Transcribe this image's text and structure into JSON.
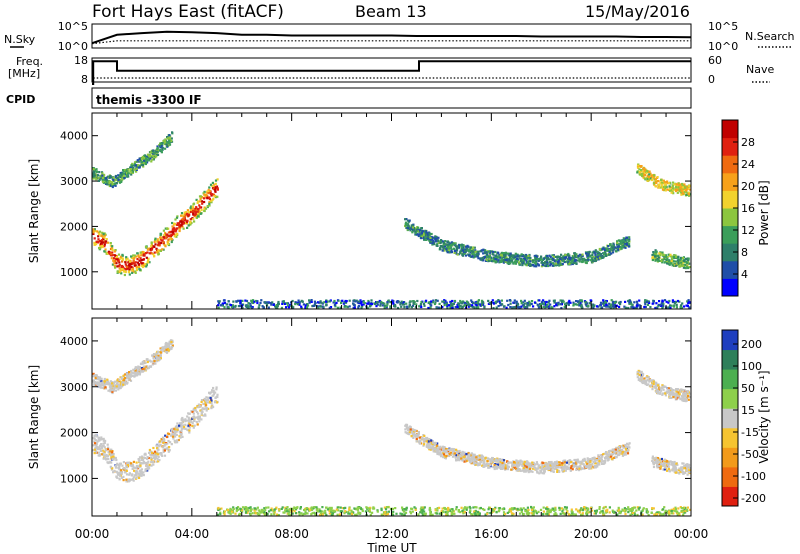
{
  "header": {
    "station": "Fort Hays East (fitACF)",
    "beam": "Beam 13",
    "date": "15/May/2016"
  },
  "sky_panel": {
    "left_label": "N.Sky",
    "left_ticks": [
      "10^5",
      "10^0"
    ],
    "right_label": "N.Search",
    "right_ticks": [
      "10^5",
      "10^0"
    ]
  },
  "freq_panel": {
    "left_label_line1": "Freq.",
    "left_label_line2": "[MHz]",
    "left_ticks": [
      "18",
      "8"
    ],
    "right_label": "Nave",
    "right_ticks": [
      "60",
      "0"
    ]
  },
  "cpid_panel": {
    "label": "CPID",
    "text": "themis -3300 IF"
  },
  "time_axis": {
    "label": "Time UT",
    "ticks": [
      "00:00",
      "04:00",
      "08:00",
      "12:00",
      "16:00",
      "20:00",
      "00:00"
    ]
  },
  "power_colorbar": {
    "label": "Power [dB]",
    "ticks": [
      "28",
      "24",
      "20",
      "16",
      "12",
      "8",
      "4"
    ],
    "colors": [
      "#0000ff",
      "#1f4ea8",
      "#2e7f6a",
      "#3b9e5a",
      "#8cc63f",
      "#f2d22e",
      "#f7a11a",
      "#ef6a10",
      "#e02010",
      "#c00000"
    ]
  },
  "velocity_colorbar": {
    "label": "Velocity [m s⁻¹]",
    "ticks": [
      "200",
      "100",
      "50",
      "15",
      "-15",
      "-50",
      "-100",
      "-200"
    ],
    "colors": [
      "#1f3fbf",
      "#2e7f5a",
      "#4caf50",
      "#8ed04b",
      "#c8c8c8",
      "#f5c431",
      "#f29a1a",
      "#ef6a10",
      "#e02010"
    ]
  },
  "chart_data": [
    {
      "type": "line",
      "title": "N.Sky / N.Search",
      "x_range_hours": [
        0,
        24
      ],
      "sky_level": [
        0.2,
        0.55,
        0.62,
        0.68,
        0.66,
        0.62,
        0.55,
        0.55,
        0.52,
        0.52,
        0.52,
        0.52,
        0.52,
        0.5,
        0.5,
        0.5,
        0.5,
        0.5,
        0.48,
        0.48,
        0.48,
        0.48,
        0.46,
        0.46,
        0.45
      ],
      "search_level": [
        0.18,
        0.3,
        0.3,
        0.3,
        0.3,
        0.3,
        0.3,
        0.3,
        0.3,
        0.3,
        0.3,
        0.3,
        0.3,
        0.3,
        0.3,
        0.3,
        0.3,
        0.3,
        0.3,
        0.3,
        0.3,
        0.3,
        0.3,
        0.3,
        0.3
      ]
    },
    {
      "type": "line",
      "ylabel": "Freq. [MHz]",
      "x_hours": [
        0,
        0.05,
        0.05,
        1.0,
        1.0,
        13.1,
        13.1,
        24
      ],
      "freq_mhz": [
        8,
        8,
        17.5,
        17.5,
        13.5,
        13.5,
        17.5,
        17.5
      ],
      "nave_level": 10
    },
    {
      "type": "heatmap",
      "ylabel": "Slant Range [km]",
      "xlabel": "Time UT",
      "x_range_hours": [
        0,
        24
      ],
      "y_range_km": [
        180,
        4500
      ],
      "y_ticks_km": [
        1000,
        2000,
        3000,
        4000
      ],
      "colorbar": "Power [dB]",
      "features": [
        {
          "name": "morning arc",
          "t": [
            0.0,
            0.5,
            1.0,
            1.5,
            2.0,
            2.5,
            3.0,
            3.5,
            4.0,
            4.5,
            5.0
          ],
          "range_km": [
            1800,
            1650,
            1200,
            1150,
            1300,
            1550,
            1800,
            2100,
            2300,
            2600,
            2900
          ],
          "power_db": 22
        },
        {
          "name": "upper band",
          "t": [
            0.0,
            0.8,
            1.6,
            2.4,
            3.2
          ],
          "range_km": [
            3200,
            3000,
            3300,
            3600,
            4000
          ],
          "power_db": 10
        },
        {
          "name": "evening arc",
          "t": [
            21.8,
            22.2,
            22.6,
            23.0,
            23.5,
            24.0
          ],
          "range_km": [
            3300,
            3150,
            3000,
            2900,
            2850,
            2800
          ],
          "power_db": 16
        },
        {
          "name": "evening low band",
          "t": [
            22.4,
            23.0,
            23.5,
            24.0
          ],
          "range_km": [
            1400,
            1300,
            1250,
            1200
          ],
          "power_db": 12
        },
        {
          "name": "midday arc",
          "t": [
            12.5,
            14.0,
            16.0,
            18.0,
            20.0,
            21.5
          ],
          "range_km": [
            2100,
            1600,
            1350,
            1250,
            1350,
            1700
          ],
          "power_db": 8
        },
        {
          "name": "ground scatter floor",
          "t": [
            5.0,
            24.0
          ],
          "range_km": [
            230,
            230
          ],
          "power_db": 6
        }
      ]
    },
    {
      "type": "heatmap",
      "ylabel": "Slant Range [km]",
      "xlabel": "Time UT",
      "x_range_hours": [
        0,
        24
      ],
      "y_range_km": [
        180,
        4500
      ],
      "y_ticks_km": [
        1000,
        2000,
        3000,
        4000
      ],
      "colorbar": "Velocity [m s⁻¹]",
      "features": [
        {
          "name": "morning arc",
          "velocity": 0
        },
        {
          "name": "evening arc",
          "velocity": 0
        },
        {
          "name": "ground scatter floor",
          "velocity": 30
        }
      ]
    }
  ]
}
